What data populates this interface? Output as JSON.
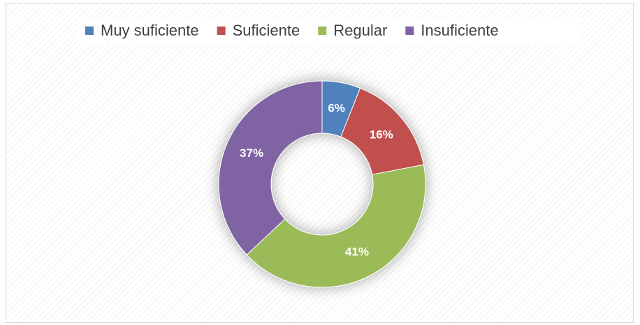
{
  "chart_data": {
    "type": "donut",
    "categories": [
      "Muy suficiente",
      "Suficiente",
      "Regular",
      "Insuficiente"
    ],
    "values": [
      6,
      16,
      41,
      37
    ],
    "value_labels": [
      "6%",
      "16%",
      "41%",
      "37%"
    ],
    "colors": [
      "#4f81bd",
      "#c0504d",
      "#9bbb59",
      "#8064a2"
    ],
    "legend": "top"
  }
}
